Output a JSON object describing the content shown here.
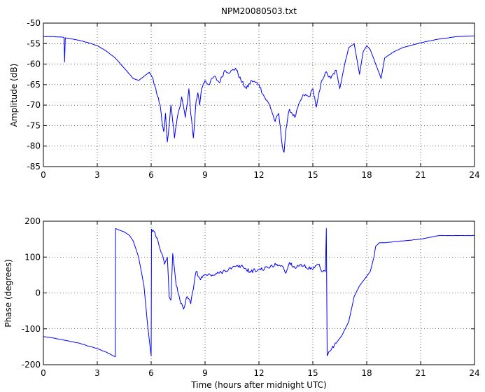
{
  "chart_data": [
    {
      "type": "line",
      "title": "NPM20080503.txt",
      "xlabel": "",
      "ylabel": "Amplitude (dB)",
      "xlim": [
        0,
        24
      ],
      "ylim": [
        -85,
        -50
      ],
      "xticks": [
        "0",
        "3",
        "6",
        "9",
        "12",
        "15",
        "18",
        "21",
        "24"
      ],
      "yticks": [
        "-50",
        "-55",
        "-60",
        "-65",
        "-70",
        "-75",
        "-80",
        "-85"
      ],
      "grid": true,
      "color": "#0000ff",
      "series": [
        {
          "x": [
            0,
            0.5,
            1.0,
            1.15,
            1.18,
            1.22,
            1.25,
            1.5,
            2.0,
            2.5,
            3.0,
            3.5,
            4.0,
            4.5,
            5.0,
            5.3,
            5.6,
            5.9,
            6.1,
            6.3,
            6.5,
            6.6,
            6.7,
            6.8,
            6.9,
            7.0,
            7.1,
            7.2,
            7.3,
            7.5,
            7.7,
            7.9,
            8.0,
            8.1,
            8.2,
            8.35,
            8.5,
            8.6,
            8.7,
            8.8,
            9.0,
            9.2,
            9.5,
            9.8,
            10.1,
            10.4,
            10.7,
            11.0,
            11.3,
            11.6,
            12.0,
            12.3,
            12.6,
            12.9,
            13.1,
            13.3,
            13.4,
            13.5,
            13.7,
            14.0,
            14.3,
            14.5,
            14.8,
            15.0,
            15.2,
            15.5,
            15.7,
            16.0,
            16.3,
            16.5,
            16.8,
            17.0,
            17.3,
            17.6,
            17.8,
            18.0,
            18.2,
            18.5,
            18.8,
            19.0,
            19.5,
            20.0,
            21.0,
            22.0,
            23.0,
            24.0
          ],
          "y": [
            -53.3,
            -53.3,
            -53.4,
            -53.5,
            -59.5,
            -53.6,
            -53.6,
            -53.8,
            -54.2,
            -54.8,
            -55.5,
            -56.8,
            -58.5,
            -61.0,
            -63.5,
            -64.0,
            -63.0,
            -62.0,
            -63.5,
            -67.0,
            -70.0,
            -74.0,
            -76.5,
            -72.0,
            -79.0,
            -75.0,
            -70.0,
            -74.0,
            -78.0,
            -72.0,
            -68.0,
            -73.0,
            -70.0,
            -66.0,
            -72.0,
            -78.0,
            -69.0,
            -67.0,
            -70.0,
            -66.0,
            -64.0,
            -65.0,
            -63.0,
            -64.5,
            -61.5,
            -62.0,
            -61.0,
            -64.0,
            -66.0,
            -64.0,
            -65.0,
            -68.0,
            -70.0,
            -74.0,
            -72.0,
            -80.0,
            -81.5,
            -76.0,
            -71.0,
            -73.0,
            -69.0,
            -67.5,
            -68.0,
            -66.0,
            -70.5,
            -64.0,
            -62.0,
            -63.5,
            -61.5,
            -66.0,
            -59.5,
            -56.0,
            -55.0,
            -62.5,
            -57.0,
            -55.5,
            -56.5,
            -60.0,
            -63.5,
            -58.5,
            -57.0,
            -56.0,
            -54.8,
            -53.9,
            -53.3,
            -53.1
          ]
        }
      ]
    },
    {
      "type": "line",
      "title": "",
      "xlabel": "Time (hours after midnight UTC)",
      "ylabel": "Phase (degrees)",
      "xlim": [
        0,
        24
      ],
      "ylim": [
        -200,
        200
      ],
      "xticks": [
        "0",
        "3",
        "6",
        "9",
        "12",
        "15",
        "18",
        "21",
        "24"
      ],
      "yticks": [
        "200",
        "100",
        "0",
        "-100",
        "-200"
      ],
      "grid": true,
      "color": "#0000ff",
      "series": [
        {
          "x": [
            0,
            0.5,
            1.0,
            1.5,
            2.0,
            2.5,
            3.0,
            3.5,
            4.0,
            4.02,
            4.1,
            4.5,
            4.8,
            5.0,
            5.3,
            5.6,
            5.8,
            6.0,
            6.02,
            6.2,
            6.4,
            6.6,
            6.75,
            6.9,
            7.0,
            7.1,
            7.2,
            7.4,
            7.6,
            7.8,
            8.0,
            8.2,
            8.4,
            8.5,
            8.7,
            9.0,
            9.5,
            10.0,
            10.5,
            11.0,
            11.5,
            12.0,
            12.5,
            13.0,
            13.3,
            13.5,
            13.7,
            14.0,
            14.3,
            14.5,
            15.0,
            15.3,
            15.5,
            15.7,
            15.75,
            15.8,
            16.0,
            16.3,
            16.6,
            17.0,
            17.3,
            17.6,
            17.9,
            18.2,
            18.4,
            18.5,
            18.7,
            19.0,
            20.0,
            21.0,
            22.0,
            23.0,
            24.0
          ],
          "y": [
            -122,
            -125,
            -130,
            -135,
            -140,
            -148,
            -155,
            -165,
            -178,
            180,
            178,
            170,
            160,
            145,
            100,
            20,
            -90,
            -175,
            178,
            170,
            140,
            110,
            80,
            100,
            -10,
            -20,
            110,
            20,
            -20,
            -45,
            -10,
            -30,
            30,
            60,
            40,
            50,
            50,
            60,
            70,
            75,
            60,
            65,
            70,
            80,
            75,
            55,
            85,
            70,
            80,
            75,
            65,
            80,
            60,
            60,
            180,
            -175,
            -160,
            -140,
            -120,
            -80,
            -10,
            20,
            40,
            60,
            100,
            130,
            140,
            140,
            145,
            150,
            160,
            160,
            160
          ]
        }
      ]
    }
  ]
}
